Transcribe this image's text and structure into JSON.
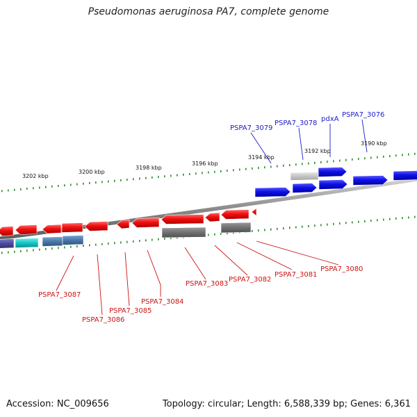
{
  "title": "Pseudomonas aeruginosa PA7, complete genome",
  "footer": {
    "accession": "Accession: NC_009656",
    "topology": "Topology: circular; Length: 6,588,339 bp; Genes: 6,361"
  },
  "colors": {
    "forward_gene": "#1010e0",
    "reverse_gene": "#ee1111",
    "forward_label": "#1a1acc",
    "reverse_label": "#cc1111",
    "tick": "#2f8a2f",
    "backbone": "#888888",
    "other_gray": "#7a7a7a",
    "other_light": "#c8c8c8",
    "other_cyan": "#1ec8c8",
    "other_steel": "#4a78a8",
    "other_purple": "#4a4a9a"
  },
  "tick_labels": [
    "3202 kbp",
    "3200 kbp",
    "3198 kbp",
    "3196 kbp",
    "3194 kbp",
    "3192 kbp",
    "3190 kbp"
  ],
  "forward_labels": [
    "PSPA7_3079",
    "PSPA7_3078",
    "pdxA",
    "PSPA7_3076"
  ],
  "reverse_labels": [
    "PSPA7_3087",
    "PSPA7_3086",
    "PSPA7_3085",
    "PSPA7_3084",
    "PSPA7_3083",
    "PSPA7_3082",
    "PSPA7_3081",
    "PSPA7_3080"
  ]
}
